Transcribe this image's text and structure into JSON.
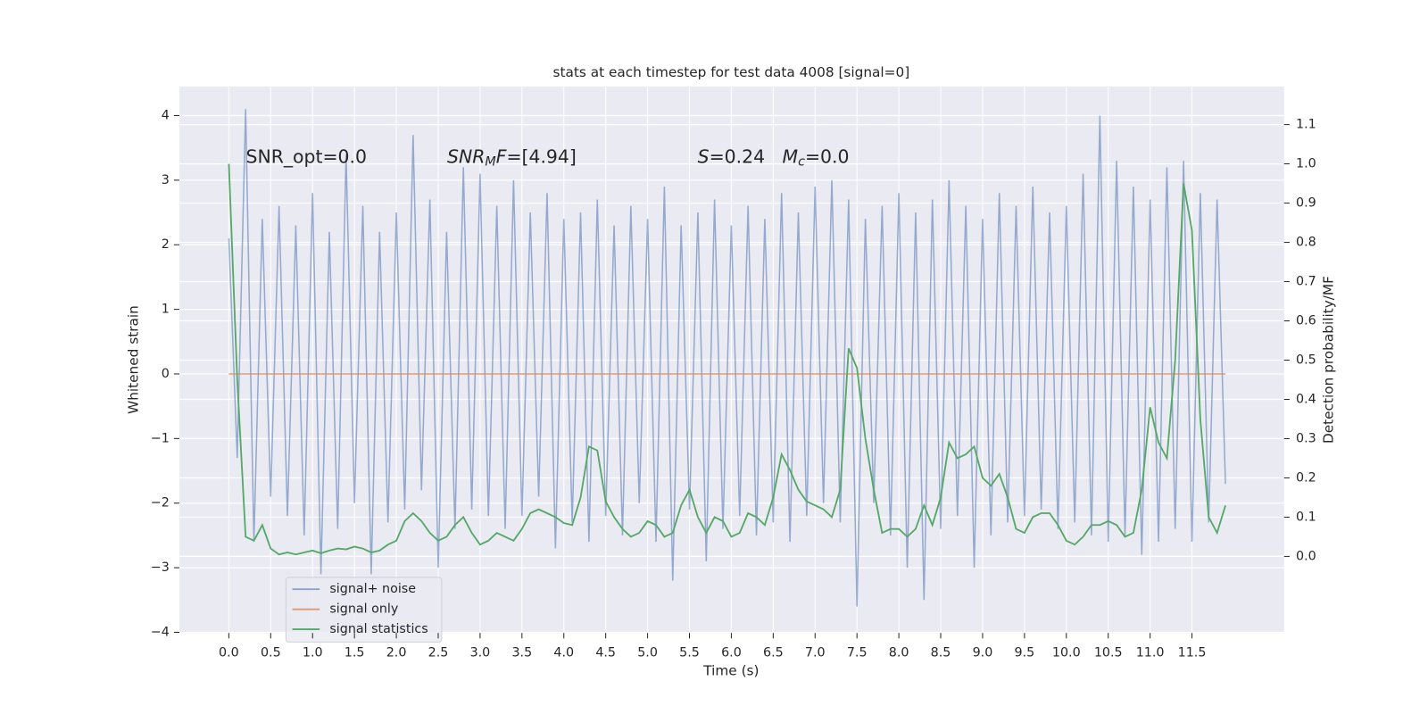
{
  "chart_data": {
    "type": "line",
    "title": "stats at each timestep for test data 4008 [signal=0]",
    "xlabel": "Time (s)",
    "ylabel": "Whitened strain",
    "y2label": "Detection probability/MF",
    "grid": true,
    "legend": "lower left",
    "xlim": [
      -0.59,
      12.6
    ],
    "ylim": [
      -4.01,
      4.45
    ],
    "y2lim": [
      -0.195,
      1.197
    ],
    "xticks": [
      {
        "value": 0,
        "label": "0.0"
      },
      {
        "value": 0.5,
        "label": "0.5"
      },
      {
        "value": 1,
        "label": "1.0"
      },
      {
        "value": 1.5,
        "label": "1.5"
      },
      {
        "value": 2,
        "label": "2.0"
      },
      {
        "value": 2.5,
        "label": "2.5"
      },
      {
        "value": 3,
        "label": "3.0"
      },
      {
        "value": 3.5,
        "label": "3.5"
      },
      {
        "value": 4,
        "label": "4.0"
      },
      {
        "value": 4.5,
        "label": "4.5"
      },
      {
        "value": 5,
        "label": "5.0"
      },
      {
        "value": 5.5,
        "label": "5.5"
      },
      {
        "value": 6,
        "label": "6.0"
      },
      {
        "value": 6.5,
        "label": "6.5"
      },
      {
        "value": 7,
        "label": "7.0"
      },
      {
        "value": 7.5,
        "label": "7.5"
      },
      {
        "value": 8,
        "label": "8.0"
      },
      {
        "value": 8.5,
        "label": "8.5"
      },
      {
        "value": 9,
        "label": "9.0"
      },
      {
        "value": 9.5,
        "label": "9.5"
      },
      {
        "value": 10,
        "label": "10.0"
      },
      {
        "value": 10.5,
        "label": "10.5"
      },
      {
        "value": 11,
        "label": "11.0"
      },
      {
        "value": 11.5,
        "label": "11.5"
      }
    ],
    "yticks": [
      {
        "value": -4,
        "label": "−4"
      },
      {
        "value": -3,
        "label": "−3"
      },
      {
        "value": -2,
        "label": "−2"
      },
      {
        "value": -1,
        "label": "−1"
      },
      0,
      1,
      2,
      3,
      4
    ],
    "y2ticks": [
      {
        "value": 0,
        "label": "0.0"
      },
      {
        "value": 0.1,
        "label": "0.1"
      },
      {
        "value": 0.2,
        "label": "0.2"
      },
      {
        "value": 0.3,
        "label": "0.3"
      },
      {
        "value": 0.4,
        "label": "0.4"
      },
      {
        "value": 0.5,
        "label": "0.5"
      },
      {
        "value": 0.6,
        "label": "0.6"
      },
      {
        "value": 0.7,
        "label": "0.7"
      },
      {
        "value": 0.8,
        "label": "0.8"
      },
      {
        "value": 0.9,
        "label": "0.9"
      },
      {
        "value": 1,
        "label": "1.0"
      },
      {
        "value": 1.1,
        "label": "1.1"
      }
    ],
    "annotations": [
      [
        {
          "text": "SNR_opt=0.0"
        }
      ],
      [
        {
          "text": "SNR",
          "italic": true
        },
        {
          "text": "M",
          "italic": true,
          "sub": true
        },
        {
          "text": "F",
          "italic": true
        },
        {
          "text": "=[4.94]"
        }
      ],
      [
        {
          "text": "S",
          "italic": true
        },
        {
          "text": "=0.24"
        }
      ],
      [
        {
          "text": "M",
          "italic": true
        },
        {
          "text": "c",
          "italic": true,
          "sub": true
        },
        {
          "text": "=0.0"
        }
      ]
    ],
    "x": [
      0,
      0.1,
      0.2,
      0.3,
      0.4,
      0.5,
      0.6,
      0.7,
      0.8,
      0.9,
      1,
      1.1,
      1.2,
      1.3,
      1.4,
      1.5,
      1.6,
      1.7,
      1.8,
      1.9,
      2,
      2.1,
      2.2,
      2.3,
      2.4,
      2.5,
      2.6,
      2.7,
      2.8,
      2.9,
      3,
      3.1,
      3.2,
      3.3,
      3.4,
      3.5,
      3.6,
      3.7,
      3.8,
      3.9,
      4,
      4.1,
      4.2,
      4.3,
      4.4,
      4.5,
      4.6,
      4.7,
      4.8,
      4.9,
      5,
      5.1,
      5.2,
      5.3,
      5.4,
      5.5,
      5.6,
      5.7,
      5.8,
      5.9,
      6,
      6.1,
      6.2,
      6.3,
      6.4,
      6.5,
      6.6,
      6.7,
      6.8,
      6.9,
      7,
      7.1,
      7.2,
      7.3,
      7.4,
      7.5,
      7.6,
      7.7,
      7.8,
      7.9,
      8,
      8.1,
      8.2,
      8.3,
      8.4,
      8.5,
      8.6,
      8.7,
      8.8,
      8.9,
      9,
      9.1,
      9.2,
      9.3,
      9.4,
      9.5,
      9.6,
      9.7,
      9.8,
      9.9,
      10,
      10.1,
      10.2,
      10.3,
      10.4,
      10.5,
      10.6,
      10.7,
      10.8,
      10.9,
      11,
      11.1,
      11.2,
      11.3,
      11.4,
      11.5,
      11.6,
      11.7,
      11.8,
      11.9
    ],
    "series": [
      {
        "name": "signal+ noise",
        "color": "#4c72b0",
        "values": [
          2.1,
          -1.3,
          4.1,
          -2.6,
          2.4,
          -1.9,
          2.6,
          -2.2,
          2.3,
          -2.5,
          2.8,
          -3.1,
          2.2,
          -2.4,
          3.4,
          -2.0,
          2.6,
          -3.1,
          2.2,
          -2.3,
          2.5,
          -2.1,
          3.7,
          -1.8,
          2.7,
          -3.0,
          2.2,
          -2.4,
          3.2,
          -2.1,
          3.1,
          -2.2,
          2.6,
          -2.4,
          3.0,
          -2.2,
          2.5,
          -1.9,
          2.8,
          -2.7,
          2.4,
          -2.3,
          2.5,
          -2.6,
          2.7,
          -2.2,
          2.3,
          -2.5,
          2.6,
          -2.0,
          2.4,
          -2.6,
          2.9,
          -3.2,
          2.3,
          -2.1,
          2.5,
          -2.9,
          2.7,
          -2.4,
          2.3,
          -2.2,
          2.6,
          -2.5,
          2.4,
          -2.3,
          2.8,
          -2.6,
          2.5,
          -2.2,
          2.9,
          -2.0,
          3.0,
          -2.3,
          2.7,
          -3.6,
          2.4,
          -2.0,
          2.6,
          -2.5,
          2.8,
          -3.0,
          2.5,
          -3.5,
          2.7,
          -2.4,
          3.0,
          -2.2,
          2.6,
          -3.0,
          2.4,
          -2.5,
          2.8,
          -2.3,
          2.6,
          -2.2,
          2.9,
          -2.1,
          2.5,
          -2.4,
          2.6,
          -2.3,
          3.1,
          -2.5,
          4.0,
          -2.6,
          3.3,
          -2.5,
          2.9,
          -2.8,
          2.7,
          -2.6,
          3.2,
          -2.4,
          3.3,
          -2.6,
          2.8,
          -2.3,
          2.7,
          -1.7
        ]
      },
      {
        "name": "signal only",
        "color": "#dd8452",
        "x": [
          0,
          11.9
        ],
        "values": [
          0,
          0
        ]
      },
      {
        "name": "signal statistics",
        "color": "#55a868",
        "axis": "y2",
        "values": [
          1.0,
          0.45,
          0.05,
          0.04,
          0.08,
          0.02,
          0.005,
          0.01,
          0.005,
          0.01,
          0.015,
          0.008,
          0.015,
          0.02,
          0.018,
          0.025,
          0.02,
          0.01,
          0.015,
          0.03,
          0.04,
          0.09,
          0.11,
          0.09,
          0.06,
          0.04,
          0.05,
          0.08,
          0.1,
          0.06,
          0.03,
          0.04,
          0.06,
          0.05,
          0.04,
          0.07,
          0.11,
          0.12,
          0.11,
          0.1,
          0.085,
          0.08,
          0.15,
          0.28,
          0.27,
          0.14,
          0.1,
          0.07,
          0.05,
          0.06,
          0.09,
          0.08,
          0.05,
          0.06,
          0.13,
          0.17,
          0.1,
          0.06,
          0.1,
          0.09,
          0.05,
          0.06,
          0.11,
          0.1,
          0.08,
          0.15,
          0.26,
          0.22,
          0.17,
          0.14,
          0.13,
          0.12,
          0.1,
          0.17,
          0.53,
          0.48,
          0.3,
          0.17,
          0.06,
          0.07,
          0.07,
          0.05,
          0.07,
          0.13,
          0.08,
          0.15,
          0.29,
          0.25,
          0.26,
          0.28,
          0.2,
          0.18,
          0.21,
          0.15,
          0.07,
          0.06,
          0.1,
          0.11,
          0.11,
          0.08,
          0.04,
          0.03,
          0.05,
          0.08,
          0.08,
          0.09,
          0.08,
          0.05,
          0.06,
          0.17,
          0.38,
          0.29,
          0.25,
          0.5,
          0.95,
          0.83,
          0.35,
          0.1,
          0.06,
          0.13
        ]
      }
    ]
  }
}
